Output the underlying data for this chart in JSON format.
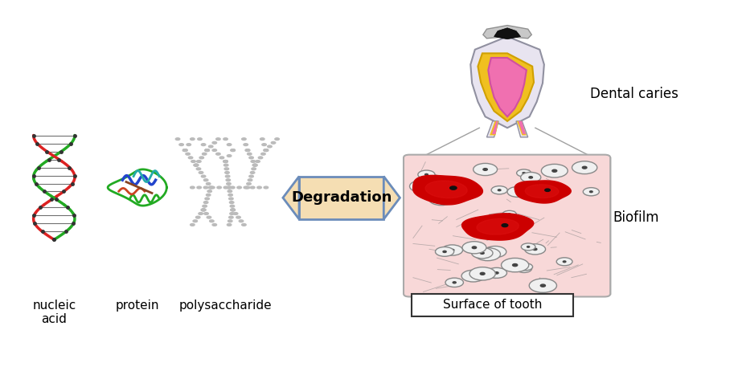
{
  "background_color": "#ffffff",
  "figsize": [
    9.18,
    4.67
  ],
  "dpi": 100,
  "labels": {
    "nucleic_acid": "nucleic\nacid",
    "protein": "protein",
    "polysaccharide": "polysaccharide",
    "degradation": "Degradation",
    "dental_caries": "Dental caries",
    "biofilm": "Biofilm",
    "surface_of_tooth": "Surface of tooth"
  },
  "colors": {
    "banner_fill": "#f5deb3",
    "banner_edge": "#6b8cba",
    "biofilm_fill": "#f8d8d8",
    "biofilm_edge": "#aaaaaa",
    "tooth_outer": "#e8e0f0",
    "tooth_pulp": "#f080b0",
    "tooth_dentin": "#f0c020",
    "tooth_crown_dark": "#1a1a1a",
    "tooth_crown_gray": "#b0b0b0",
    "surface_box_fill": "#ffffff",
    "surface_box_edge": "#333333",
    "red_cell": "#cc0000",
    "red_cell_dark": "#880000",
    "small_circle_fill": "#d8d8d8",
    "small_circle_edge": "#555555",
    "dna_red": "#dd2222",
    "dna_green": "#22aa22",
    "poly_color": "#bbbbbb",
    "line_color": "#555555",
    "zoom_line": "#888888"
  },
  "font_sizes": {
    "label_main": 11,
    "label_bold": 13
  }
}
